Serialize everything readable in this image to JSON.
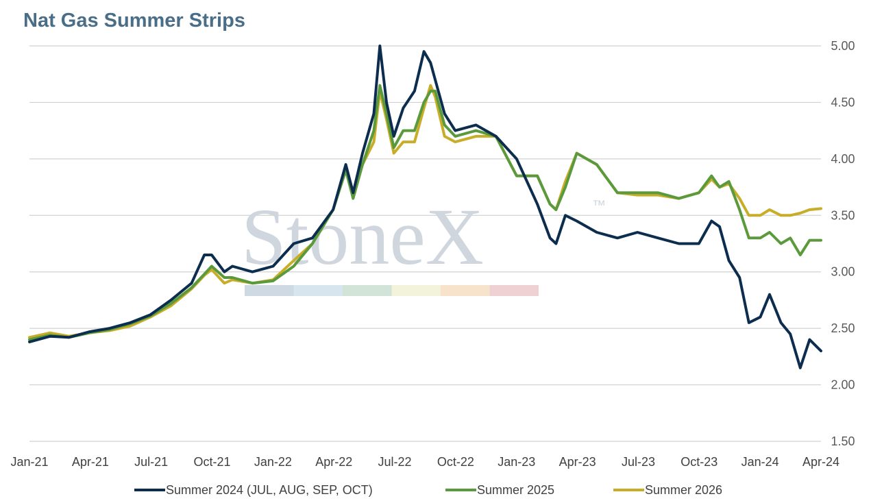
{
  "chart_data": {
    "type": "line",
    "title": "Nat Gas Summer Strips",
    "watermark": {
      "text": "StoneX",
      "mark": "™",
      "band_colors": [
        "#cfd9e3",
        "#d7e5ef",
        "#d2e3d8",
        "#f3f3dc",
        "#f7e3cb",
        "#efd0d3"
      ]
    },
    "x_ticks": [
      "Jan-21",
      "Apr-21",
      "Jul-21",
      "Oct-21",
      "Jan-22",
      "Apr-22",
      "Jul-22",
      "Oct-22",
      "Jan-23",
      "Apr-23",
      "Jul-23",
      "Oct-23",
      "Jan-24",
      "Apr-24"
    ],
    "y_ticks": [
      "5.00",
      "4.50",
      "4.00",
      "3.50",
      "3.00",
      "2.50",
      "2.00",
      "1.50"
    ],
    "ylim": [
      1.5,
      5.0
    ],
    "y_axis_side": "right",
    "grid": true,
    "legend_position": "bottom",
    "x_dates": [
      "2021-01-01",
      "2021-02-01",
      "2021-03-01",
      "2021-04-01",
      "2021-05-01",
      "2021-06-01",
      "2021-07-01",
      "2021-08-01",
      "2021-09-01",
      "2021-09-20",
      "2021-10-01",
      "2021-10-20",
      "2021-11-01",
      "2021-12-01",
      "2022-01-01",
      "2022-02-01",
      "2022-03-01",
      "2022-04-01",
      "2022-04-20",
      "2022-05-01",
      "2022-05-15",
      "2022-06-01",
      "2022-06-10",
      "2022-06-20",
      "2022-07-01",
      "2022-07-15",
      "2022-08-01",
      "2022-08-15",
      "2022-08-25",
      "2022-09-01",
      "2022-09-15",
      "2022-10-01",
      "2022-11-01",
      "2022-12-01",
      "2023-01-01",
      "2023-02-01",
      "2023-02-20",
      "2023-03-01",
      "2023-03-15",
      "2023-04-01",
      "2023-05-01",
      "2023-06-01",
      "2023-07-01",
      "2023-08-01",
      "2023-09-01",
      "2023-10-01",
      "2023-10-20",
      "2023-11-01",
      "2023-11-15",
      "2023-12-01",
      "2023-12-15",
      "2024-01-01",
      "2024-01-15",
      "2024-02-01",
      "2024-02-15",
      "2024-03-01",
      "2024-03-15",
      "2024-04-01"
    ],
    "series": [
      {
        "name": "Summer 2024 (JUL, AUG, SEP, OCT)",
        "color": "#0d2d4f",
        "values": [
          2.38,
          2.43,
          2.42,
          2.47,
          2.5,
          2.55,
          2.62,
          2.75,
          2.9,
          3.15,
          3.15,
          3.0,
          3.05,
          3.0,
          3.05,
          3.25,
          3.3,
          3.55,
          3.95,
          3.7,
          4.05,
          4.4,
          5.0,
          4.5,
          4.2,
          4.45,
          4.6,
          4.95,
          4.85,
          4.7,
          4.4,
          4.25,
          4.3,
          4.2,
          4.0,
          3.6,
          3.3,
          3.25,
          3.5,
          3.45,
          3.35,
          3.3,
          3.35,
          3.3,
          3.25,
          3.25,
          3.45,
          3.4,
          3.1,
          2.95,
          2.55,
          2.6,
          2.8,
          2.55,
          2.45,
          2.15,
          2.4,
          2.3
        ]
      },
      {
        "name": "Summer 2025",
        "color": "#5a9a3c",
        "values": [
          2.4,
          2.44,
          2.42,
          2.46,
          2.49,
          2.54,
          2.61,
          2.72,
          2.86,
          2.98,
          3.05,
          2.95,
          2.95,
          2.9,
          2.92,
          3.05,
          3.25,
          3.55,
          3.9,
          3.65,
          3.95,
          4.25,
          4.65,
          4.4,
          4.1,
          4.25,
          4.25,
          4.5,
          4.6,
          4.6,
          4.3,
          4.2,
          4.25,
          4.2,
          3.85,
          3.85,
          3.6,
          3.55,
          3.75,
          4.05,
          3.95,
          3.7,
          3.7,
          3.7,
          3.65,
          3.7,
          3.85,
          3.75,
          3.8,
          3.55,
          3.3,
          3.3,
          3.35,
          3.25,
          3.3,
          3.15,
          3.28,
          3.28
        ]
      },
      {
        "name": "Summer 2026",
        "color": "#c7ad28",
        "values": [
          2.42,
          2.46,
          2.43,
          2.46,
          2.48,
          2.52,
          2.6,
          2.7,
          2.85,
          2.97,
          3.02,
          2.9,
          2.93,
          2.9,
          2.93,
          3.1,
          3.25,
          3.55,
          3.92,
          3.68,
          3.95,
          4.15,
          4.6,
          4.35,
          4.05,
          4.15,
          4.15,
          4.45,
          4.65,
          4.55,
          4.2,
          4.15,
          4.2,
          4.2,
          3.85,
          3.85,
          3.6,
          3.55,
          3.8,
          4.05,
          3.95,
          3.7,
          3.68,
          3.68,
          3.65,
          3.7,
          3.82,
          3.75,
          3.78,
          3.65,
          3.5,
          3.5,
          3.55,
          3.5,
          3.5,
          3.52,
          3.55,
          3.56
        ]
      }
    ]
  }
}
